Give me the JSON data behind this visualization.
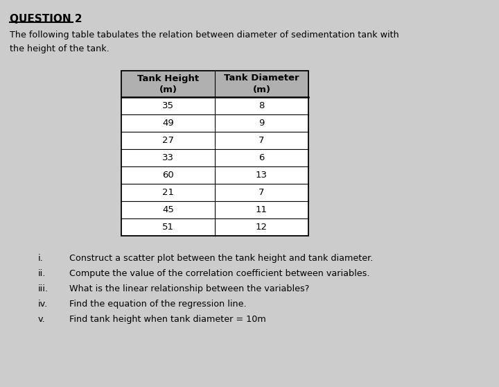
{
  "title": "QUESTION 2",
  "intro_text": "The following table tabulates the relation between diameter of sedimentation tank with\nthe height of the tank.",
  "col1_header": "Tank Height\n(m)",
  "col2_header": "Tank Diameter\n(m)",
  "tank_heights": [
    35,
    49,
    27,
    33,
    60,
    21,
    45,
    51
  ],
  "tank_diameters": [
    8,
    9,
    7,
    6,
    13,
    7,
    11,
    12
  ],
  "questions": [
    [
      "i.",
      "Construct a scatter plot between the tank height and tank diameter."
    ],
    [
      "ii.",
      "Compute the value of the correlation coefficient between variables."
    ],
    [
      "iii.",
      "What is the linear relationship between the variables?"
    ],
    [
      "iv.",
      "Find the equation of the regression line."
    ],
    [
      "v.",
      "Find tank height when tank diameter = 10m"
    ]
  ],
  "bg_color": "#cccccc",
  "table_bg": "#ffffff",
  "header_bg": "#b0b0b0",
  "border_color": "#000000",
  "text_color": "#000000",
  "fig_width": 7.2,
  "fig_height": 5.58,
  "dpi": 100
}
